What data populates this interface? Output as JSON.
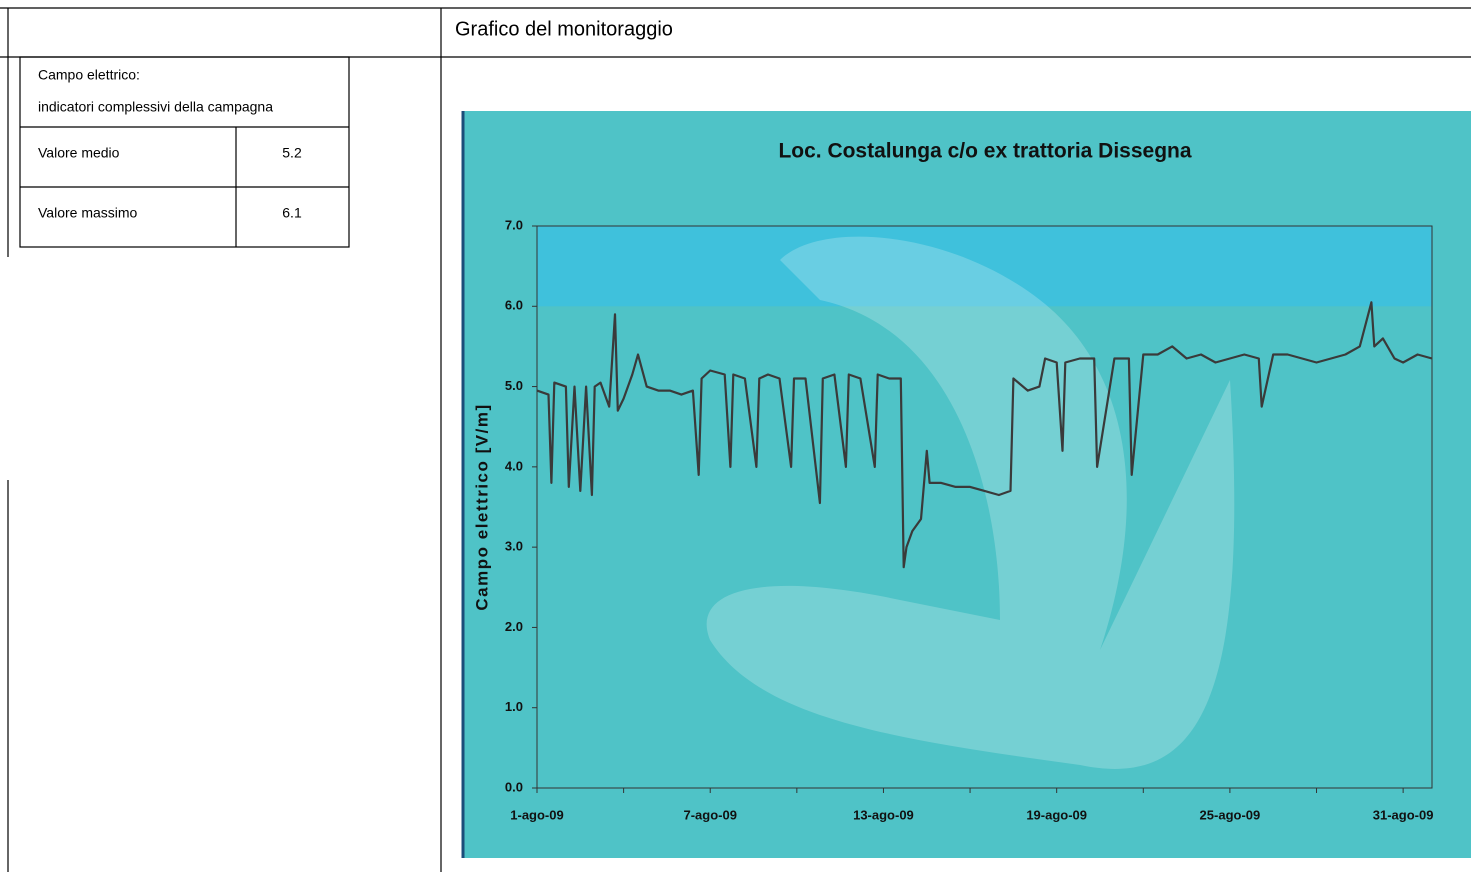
{
  "header": {
    "title": "Grafico del monitoraggio"
  },
  "table": {
    "caption": [
      "Campo elettrico:",
      "indicatori complessivi della campagna"
    ],
    "rows": [
      [
        "Valore medio",
        5.2
      ],
      [
        "Valore massimo",
        6.1
      ]
    ]
  },
  "chart_data": {
    "type": "line",
    "title": "Loc. Costalunga c/o ex trattoria Dissegna",
    "y_label": "Campo elettrico [V/m]",
    "x": [
      1.0,
      1.4,
      1.5,
      1.6,
      2.0,
      2.1,
      2.3,
      2.5,
      2.7,
      2.9,
      3.0,
      3.2,
      3.5,
      3.7,
      3.8,
      4.0,
      4.3,
      4.5,
      4.8,
      5.2,
      5.6,
      6.0,
      6.4,
      6.6,
      6.7,
      7.0,
      7.5,
      7.7,
      7.8,
      8.2,
      8.6,
      8.7,
      9.0,
      9.4,
      9.8,
      9.9,
      10.3,
      10.8,
      10.9,
      11.3,
      11.7,
      11.8,
      12.2,
      12.7,
      12.8,
      13.2,
      13.6,
      13.7,
      13.8,
      14.0,
      14.3,
      14.5,
      14.6,
      15.0,
      15.5,
      16.0,
      16.5,
      17.0,
      17.4,
      17.5,
      18.0,
      18.4,
      18.6,
      19.0,
      19.2,
      19.3,
      19.8,
      20.3,
      20.4,
      21.0,
      21.5,
      21.6,
      22.0,
      22.5,
      23.0,
      23.5,
      24.0,
      24.5,
      25.0,
      25.5,
      26.0,
      26.1,
      26.5,
      27.0,
      27.5,
      28.0,
      28.5,
      29.0,
      29.5,
      29.9,
      30.0,
      30.3,
      30.7,
      31.0,
      31.5,
      32.0
    ],
    "series": [
      {
        "color": "#3a3a3a",
        "values": [
          4.95,
          4.9,
          3.8,
          5.05,
          5.0,
          3.75,
          5.0,
          3.7,
          5.0,
          3.65,
          5.0,
          5.05,
          4.75,
          5.9,
          4.7,
          4.85,
          5.15,
          5.4,
          5.0,
          4.95,
          4.95,
          4.9,
          4.95,
          3.9,
          5.1,
          5.2,
          5.15,
          4.0,
          5.15,
          5.1,
          4.0,
          5.1,
          5.15,
          5.1,
          4.0,
          5.1,
          5.1,
          3.55,
          5.1,
          5.15,
          4.0,
          5.15,
          5.1,
          4.0,
          5.15,
          5.1,
          5.1,
          2.75,
          3.0,
          3.2,
          3.35,
          4.2,
          3.8,
          3.8,
          3.75,
          3.75,
          3.7,
          3.65,
          3.7,
          5.1,
          4.95,
          5.0,
          5.35,
          5.3,
          4.2,
          5.3,
          5.35,
          5.35,
          4.0,
          5.35,
          5.35,
          3.9,
          5.4,
          5.4,
          5.5,
          5.35,
          5.4,
          5.3,
          5.35,
          5.4,
          5.35,
          4.75,
          5.4,
          5.4,
          5.35,
          5.3,
          5.35,
          5.4,
          5.5,
          6.05,
          5.5,
          5.6,
          5.35,
          5.3,
          5.4,
          5.35
        ]
      }
    ],
    "xlim": [
      1,
      32
    ],
    "xticks": [
      {
        "value": 1,
        "label": "1-ago-09"
      },
      {
        "value": 7,
        "label": "7-ago-09"
      },
      {
        "value": 13,
        "label": "13-ago-09"
      },
      {
        "value": 19,
        "label": "19-ago-09"
      },
      {
        "value": 25,
        "label": "25-ago-09"
      },
      {
        "value": 31,
        "label": "31-ago-09"
      }
    ],
    "xminorticks": [
      4,
      10,
      16,
      22,
      28
    ],
    "ylim": [
      0,
      7
    ],
    "yticks": [
      {
        "value": 0,
        "label": "0.0"
      },
      {
        "value": 1,
        "label": "1.0"
      },
      {
        "value": 2,
        "label": "2.0"
      },
      {
        "value": 3,
        "label": "3.0"
      },
      {
        "value": 4,
        "label": "4.0"
      },
      {
        "value": 5,
        "label": "5.0"
      },
      {
        "value": 6,
        "label": "6.0"
      },
      {
        "value": 7,
        "label": "7.0"
      }
    ],
    "background_color": "#4fc3c7",
    "band": {
      "from": 6,
      "to": 7,
      "color": "#3fc1dc"
    }
  }
}
